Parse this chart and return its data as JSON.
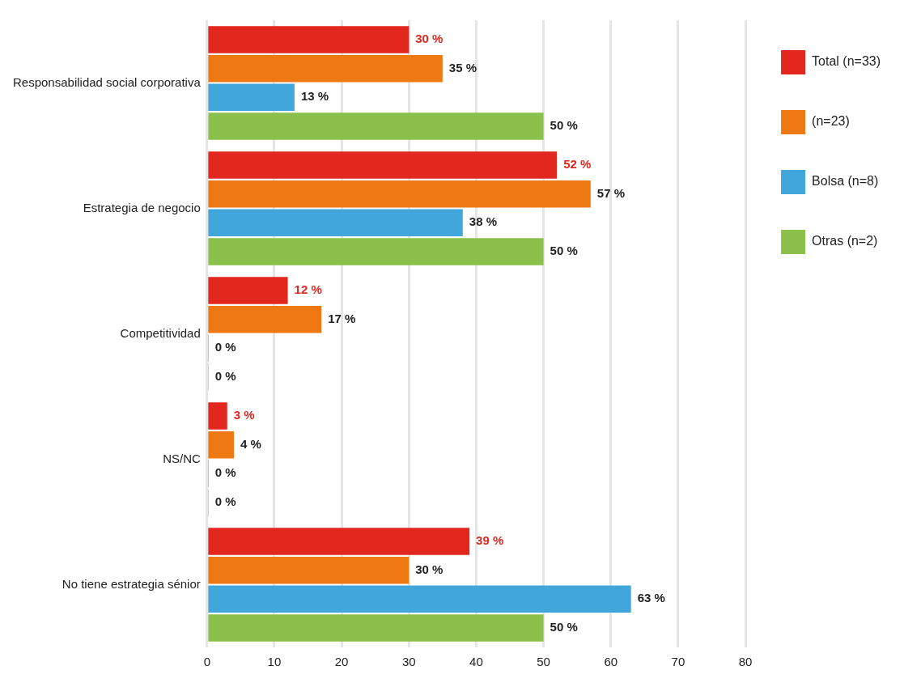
{
  "chart_data": {
    "type": "bar",
    "orientation": "horizontal",
    "categories": [
      "Responsabilidad social corporativa",
      "Estrategia de negocio",
      "Competitividad",
      "NS/NC",
      "No tiene estrategia sénior"
    ],
    "series": [
      {
        "name": "Total (n=33)",
        "color": "#e2271f",
        "values": [
          30,
          52,
          12,
          3,
          39
        ],
        "value_labels": [
          "30 %",
          "52 %",
          "12 %",
          "3 %",
          "39 %"
        ]
      },
      {
        "name": "(n=23)",
        "color": "#ee7912",
        "values": [
          35,
          57,
          17,
          4,
          30
        ],
        "value_labels": [
          "35 %",
          "57 %",
          "17 %",
          "4 %",
          "30 %"
        ]
      },
      {
        "name": "Bolsa (n=8)",
        "color": "#41a6d9",
        "values": [
          13,
          38,
          0,
          0,
          63
        ],
        "value_labels": [
          "13 %",
          "38 %",
          "0 %",
          "0 %",
          "63 %"
        ]
      },
      {
        "name": "Otras (n=2)",
        "color": "#8bc04b",
        "values": [
          50,
          50,
          0,
          0,
          50
        ],
        "value_labels": [
          "50 %",
          "50 %",
          "0 %",
          "0 %",
          "50 %"
        ]
      }
    ],
    "xlim": [
      0,
      80
    ],
    "xticks": [
      0,
      10,
      20,
      30,
      40,
      50,
      60,
      70,
      80
    ],
    "grid": "x",
    "legend": "right"
  }
}
